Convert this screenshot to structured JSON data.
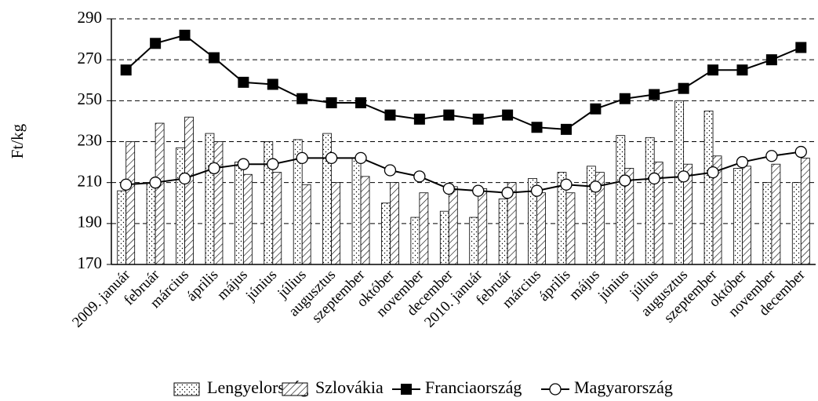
{
  "chart_data": {
    "type": "bar-line",
    "ylabel": "Ft/kg",
    "categories": [
      "2009. január",
      "február",
      "március",
      "április",
      "május",
      "június",
      "július",
      "augusztus",
      "szeptember",
      "október",
      "november",
      "december",
      "2010. január",
      "február",
      "március",
      "április",
      "május",
      "június",
      "július",
      "augusztus",
      "szeptember",
      "október",
      "november",
      "december"
    ],
    "ylim": [
      170,
      290
    ],
    "yticks": [
      170,
      190,
      210,
      230,
      250,
      270,
      290
    ],
    "grid": true,
    "series": [
      {
        "name": "Lengyelország",
        "kind": "bar",
        "pattern": "dots",
        "color": "#000000",
        "values": [
          206,
          210,
          227,
          234,
          220,
          230,
          231,
          234,
          222,
          200,
          193,
          196,
          193,
          202,
          212,
          215,
          218,
          233,
          232,
          250,
          245,
          217,
          210,
          210
        ]
      },
      {
        "name": "Szlovákia",
        "kind": "bar",
        "pattern": "hatch",
        "color": "#000000",
        "values": [
          230,
          239,
          242,
          230,
          214,
          215,
          209,
          210,
          213,
          210,
          205,
          208,
          207,
          210,
          205,
          205,
          215,
          217,
          220,
          219,
          223,
          218,
          219,
          222
        ]
      },
      {
        "name": "Franciaország",
        "kind": "line",
        "marker": "square",
        "color": "#000000",
        "values": [
          265,
          278,
          282,
          271,
          259,
          258,
          251,
          249,
          249,
          243,
          241,
          243,
          241,
          243,
          237,
          236,
          246,
          251,
          253,
          256,
          265,
          265,
          270,
          276
        ]
      },
      {
        "name": "Magyarország",
        "kind": "line",
        "marker": "circle",
        "color": "#000000",
        "values": [
          209,
          210,
          212,
          217,
          219,
          219,
          222,
          222,
          222,
          216,
          213,
          207,
          206,
          205,
          206,
          209,
          208,
          211,
          212,
          213,
          215,
          220,
          223,
          225
        ]
      }
    ]
  }
}
